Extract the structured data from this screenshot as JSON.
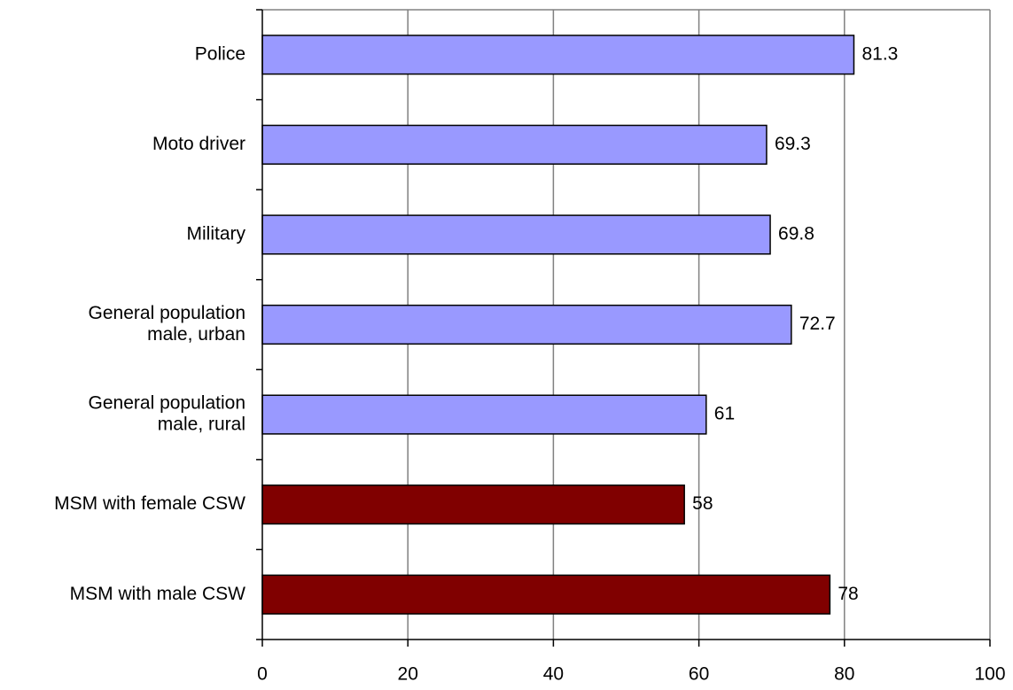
{
  "chart_data": {
    "type": "bar",
    "orientation": "horizontal",
    "title": "",
    "xlabel": "",
    "ylabel": "",
    "xlim": [
      0,
      100
    ],
    "x_ticks": [
      0,
      20,
      40,
      60,
      80,
      100
    ],
    "grid": "vertical",
    "legend": "none",
    "categories": [
      [
        "Police"
      ],
      [
        "Moto driver"
      ],
      [
        "Military"
      ],
      [
        "General population",
        "male, urban"
      ],
      [
        "General population",
        "male, rural"
      ],
      [
        "MSM with female CSW"
      ],
      [
        "MSM with male CSW"
      ]
    ],
    "values": [
      81.3,
      69.3,
      69.8,
      72.7,
      61,
      58,
      78
    ],
    "data_labels": [
      "81.3",
      "69.3",
      "69.8",
      "72.7",
      "61",
      "58",
      "78"
    ],
    "bar_colors": [
      "#9999ff",
      "#9999ff",
      "#9999ff",
      "#9999ff",
      "#9999ff",
      "#800000",
      "#800000"
    ]
  }
}
